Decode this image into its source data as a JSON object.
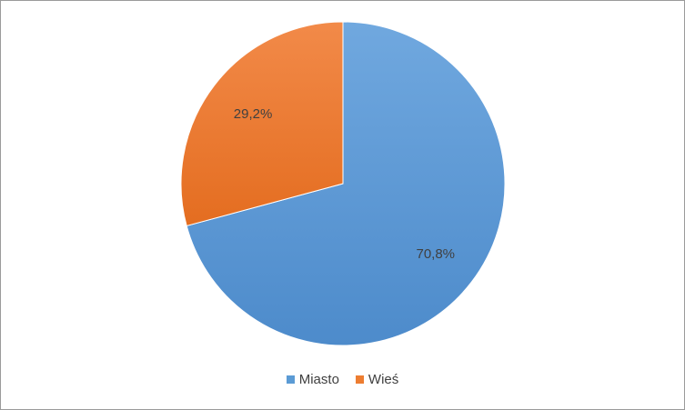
{
  "chart_data": {
    "type": "pie",
    "title": "",
    "categories": [
      "Miasto",
      "Wieś"
    ],
    "values": [
      70.8,
      29.2
    ],
    "data_labels": [
      "70,8%",
      "29,2%"
    ],
    "colors": [
      "#5b9bd5",
      "#ed7d31"
    ],
    "start_angle": "12 o'clock, clockwise",
    "legend_position": "bottom"
  },
  "legend": {
    "items": [
      {
        "label": "Miasto",
        "color": "#5b9bd5"
      },
      {
        "label": "Wieś",
        "color": "#ed7d31"
      }
    ]
  }
}
